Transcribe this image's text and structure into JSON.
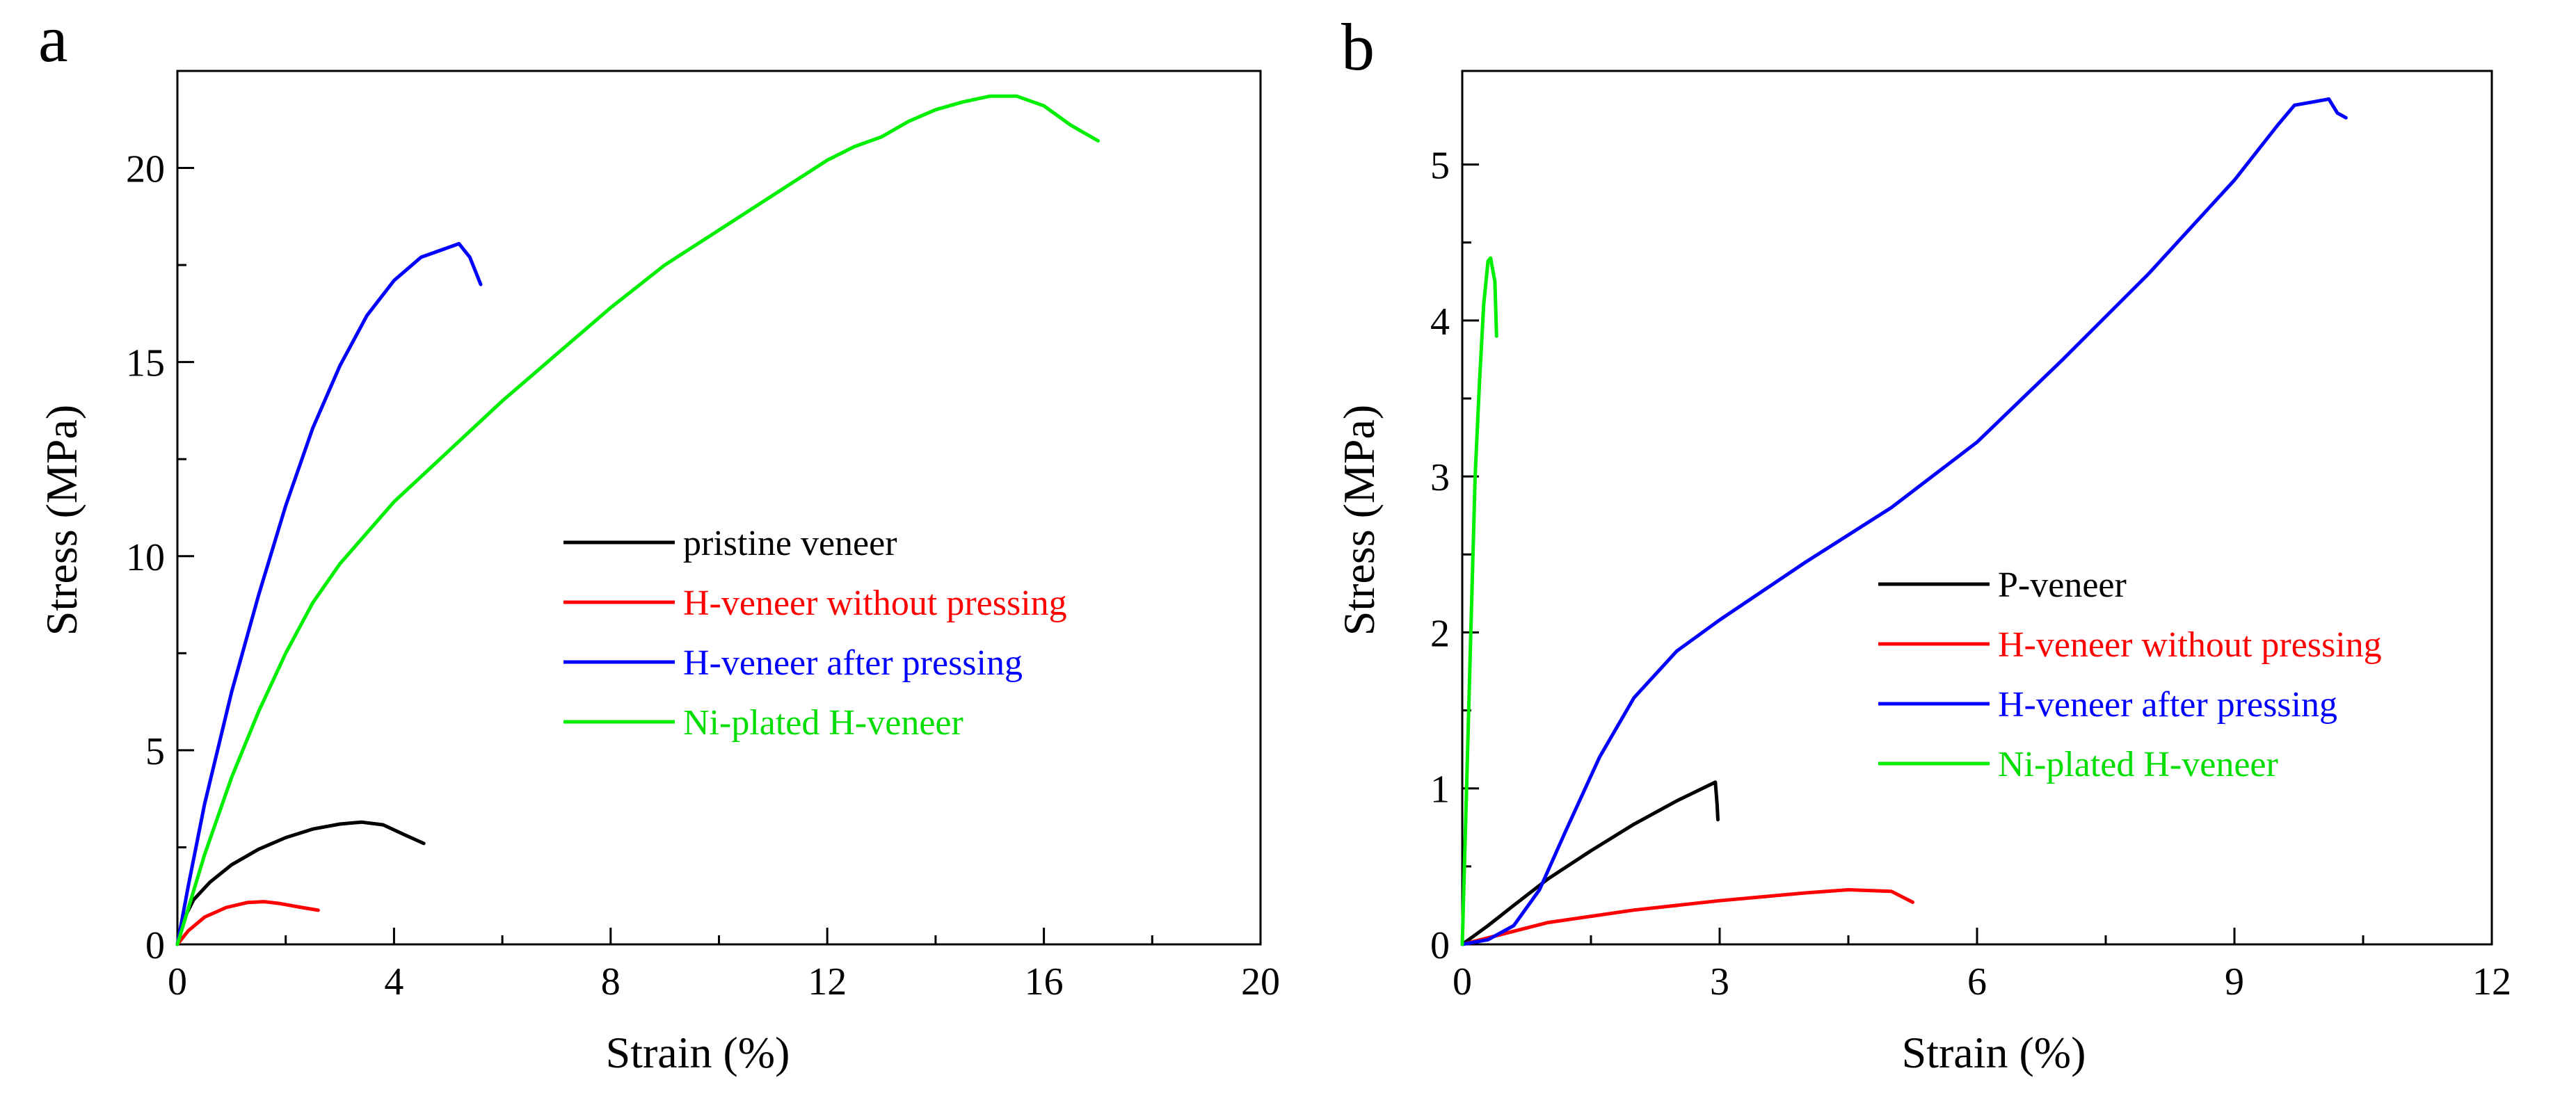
{
  "chart_data": [
    {
      "panel": "a",
      "type": "line",
      "xlabel": "Strain (%)",
      "ylabel": "Stress (MPa)",
      "xlim": [
        0,
        20
      ],
      "ylim": [
        0,
        22.5
      ],
      "xticks": [
        0,
        4,
        8,
        12,
        16,
        20
      ],
      "yticks": [
        0,
        5,
        10,
        15,
        20
      ],
      "grid": false,
      "legend_position": "center-right",
      "series": [
        {
          "name": "pristine veneer",
          "color": "#000000",
          "points": [
            [
              0,
              0
            ],
            [
              0.1,
              0.6
            ],
            [
              0.3,
              1.15
            ],
            [
              0.6,
              1.6
            ],
            [
              1.0,
              2.05
            ],
            [
              1.5,
              2.45
            ],
            [
              2.0,
              2.75
            ],
            [
              2.5,
              2.97
            ],
            [
              3.0,
              3.1
            ],
            [
              3.4,
              3.15
            ],
            [
              3.8,
              3.08
            ],
            [
              4.2,
              2.82
            ],
            [
              4.55,
              2.6
            ]
          ]
        },
        {
          "name": "H-veneer without pressing",
          "color": "#ff0000",
          "points": [
            [
              0,
              0
            ],
            [
              0.2,
              0.35
            ],
            [
              0.5,
              0.7
            ],
            [
              0.9,
              0.95
            ],
            [
              1.3,
              1.08
            ],
            [
              1.6,
              1.1
            ],
            [
              1.9,
              1.05
            ],
            [
              2.3,
              0.95
            ],
            [
              2.6,
              0.88
            ]
          ]
        },
        {
          "name": "H-veneer after pressing",
          "color": "#0000ff",
          "points": [
            [
              0,
              0
            ],
            [
              0.2,
              1.5
            ],
            [
              0.5,
              3.6
            ],
            [
              1.0,
              6.5
            ],
            [
              1.5,
              9.0
            ],
            [
              2.0,
              11.3
            ],
            [
              2.5,
              13.3
            ],
            [
              3.0,
              14.9
            ],
            [
              3.5,
              16.2
            ],
            [
              4.0,
              17.1
            ],
            [
              4.5,
              17.7
            ],
            [
              5.0,
              17.95
            ],
            [
              5.2,
              18.05
            ],
            [
              5.4,
              17.7
            ],
            [
              5.6,
              17.0
            ]
          ]
        },
        {
          "name": "Ni-plated H-veneer",
          "color": "#00ee00",
          "points": [
            [
              0,
              0
            ],
            [
              0.5,
              2.3
            ],
            [
              1.0,
              4.3
            ],
            [
              1.5,
              6.0
            ],
            [
              2.0,
              7.5
            ],
            [
              2.5,
              8.8
            ],
            [
              3.0,
              9.8
            ],
            [
              4.0,
              11.4
            ],
            [
              5.0,
              12.7
            ],
            [
              6.0,
              14.0
            ],
            [
              7.0,
              15.2
            ],
            [
              8.0,
              16.4
            ],
            [
              9.0,
              17.5
            ],
            [
              10.0,
              18.4
            ],
            [
              11.0,
              19.3
            ],
            [
              12.0,
              20.2
            ],
            [
              12.5,
              20.55
            ],
            [
              13.0,
              20.8
            ],
            [
              13.5,
              21.2
            ],
            [
              14.0,
              21.5
            ],
            [
              14.5,
              21.7
            ],
            [
              15.0,
              21.85
            ],
            [
              15.5,
              21.85
            ],
            [
              16.0,
              21.6
            ],
            [
              16.5,
              21.1
            ],
            [
              17.0,
              20.7
            ]
          ]
        }
      ]
    },
    {
      "panel": "b",
      "type": "line",
      "xlabel": "Strain (%)",
      "ylabel": "Stress (MPa)",
      "xlim": [
        0,
        12
      ],
      "ylim": [
        0,
        5.6
      ],
      "xticks": [
        0,
        3,
        6,
        9,
        12
      ],
      "yticks": [
        0,
        1,
        2,
        3,
        4,
        5
      ],
      "grid": false,
      "legend_position": "center-right",
      "series": [
        {
          "name": "P-veneer",
          "color": "#000000",
          "points": [
            [
              0,
              0
            ],
            [
              0.3,
              0.12
            ],
            [
              0.6,
              0.25
            ],
            [
              1.0,
              0.42
            ],
            [
              1.5,
              0.6
            ],
            [
              2.0,
              0.77
            ],
            [
              2.5,
              0.92
            ],
            [
              2.8,
              1.0
            ],
            [
              2.95,
              1.04
            ],
            [
              2.97,
              0.9
            ],
            [
              2.98,
              0.8
            ]
          ]
        },
        {
          "name": "H-veneer without pressing",
          "color": "#ff0000",
          "points": [
            [
              0,
              0
            ],
            [
              0.5,
              0.07
            ],
            [
              1.0,
              0.14
            ],
            [
              2.0,
              0.22
            ],
            [
              3.0,
              0.28
            ],
            [
              4.0,
              0.33
            ],
            [
              4.5,
              0.35
            ],
            [
              5.0,
              0.34
            ],
            [
              5.25,
              0.27
            ]
          ]
        },
        {
          "name": "H-veneer after pressing",
          "color": "#0000ff",
          "points": [
            [
              0,
              0
            ],
            [
              0.3,
              0.03
            ],
            [
              0.6,
              0.12
            ],
            [
              0.9,
              0.35
            ],
            [
              1.2,
              0.72
            ],
            [
              1.6,
              1.2
            ],
            [
              2.0,
              1.58
            ],
            [
              2.5,
              1.88
            ],
            [
              3.0,
              2.08
            ],
            [
              4.0,
              2.45
            ],
            [
              5.0,
              2.8
            ],
            [
              6.0,
              3.22
            ],
            [
              7.0,
              3.75
            ],
            [
              8.0,
              4.3
            ],
            [
              8.5,
              4.6
            ],
            [
              9.0,
              4.9
            ],
            [
              9.5,
              5.25
            ],
            [
              9.7,
              5.38
            ],
            [
              9.9,
              5.4
            ],
            [
              10.1,
              5.42
            ],
            [
              10.2,
              5.33
            ],
            [
              10.3,
              5.3
            ]
          ]
        },
        {
          "name": "Ni-plated H-veneer",
          "color": "#00ee00",
          "points": [
            [
              0,
              0
            ],
            [
              0.05,
              1.0
            ],
            [
              0.1,
              2.0
            ],
            [
              0.15,
              3.0
            ],
            [
              0.2,
              3.6
            ],
            [
              0.25,
              4.1
            ],
            [
              0.3,
              4.38
            ],
            [
              0.33,
              4.4
            ],
            [
              0.38,
              4.25
            ],
            [
              0.4,
              3.9
            ]
          ]
        }
      ]
    }
  ]
}
